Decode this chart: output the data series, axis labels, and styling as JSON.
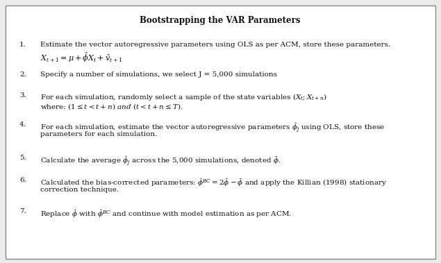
{
  "title": "Bootstrapping the VAR Parameters",
  "bg_color": "#ebebeb",
  "border_color": "#888888",
  "text_color": "#111111",
  "title_fontsize": 8.5,
  "body_fontsize": 7.5,
  "math_fontsize": 8.0,
  "items": [
    {
      "num": "1.",
      "line1": "Estimate the vector autoregressive parameters using OLS as per ACM, store these parameters.",
      "line2": "$X_{t+1} = \\mu + \\hat{\\phi}X_t + \\hat{v}_{t+1}$",
      "has_line2": true,
      "line2_indent": true
    },
    {
      "num": "2.",
      "line1": "Specify a number of simulations, we select J = 5,000 simulations",
      "has_line2": false
    },
    {
      "num": "3.",
      "line1": "For each simulation, randomly select a sample of the state variables $(X_t; X_{t+n})$",
      "line2": "where: $(1 \\leq t < t+n)$ $\\mathit{and}$ $(t < t+n \\leq T)$.",
      "has_line2": true,
      "line2_indent": false
    },
    {
      "num": "4.",
      "line1": "For each simulation, estimate the vector autoregressive parameters $\\hat{\\phi}_j$ using OLS, store these",
      "line2": "parameters for each simulation.",
      "has_line2": true,
      "line2_indent": false
    },
    {
      "num": "5.",
      "line1": "Calculate the average $\\hat{\\phi}_j$ across the 5,000 simulations, denoted $\\bar{\\phi}$.",
      "has_line2": false
    },
    {
      "num": "6.",
      "line1": "Calculated the bias-corrected parameters: $\\hat{\\phi}^{BC} = 2\\hat{\\phi} - \\bar{\\phi}$ and apply the Killian (1998) stationary",
      "line2": "correction technique.",
      "has_line2": true,
      "line2_indent": false
    },
    {
      "num": "7.",
      "line1": "Replace $\\hat{\\phi}$ with $\\hat{\\phi}^{BC}$ and continue with model estimation as per ACM.",
      "has_line2": false
    }
  ]
}
